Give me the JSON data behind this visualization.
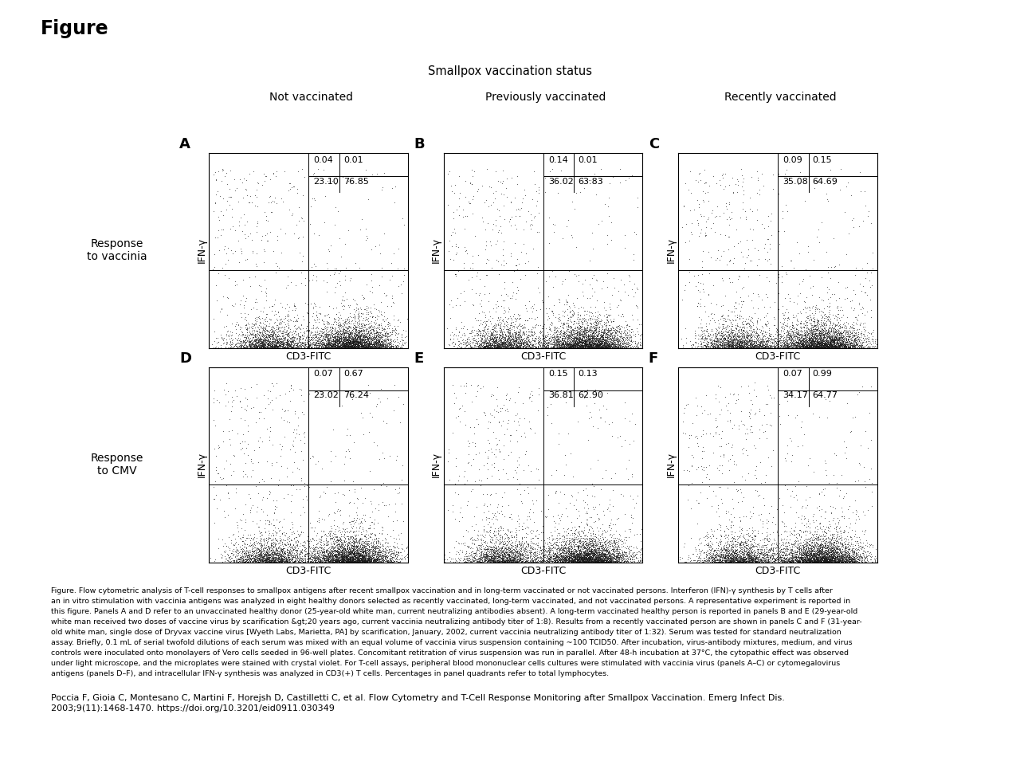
{
  "title": "Figure",
  "subtitle": "Smallpox vaccination status",
  "col_labels": [
    "Not vaccinated",
    "Previously vaccinated",
    "Recently vaccinated"
  ],
  "row_labels": [
    "Response\nto vaccinia",
    "Response\nto CMV"
  ],
  "panel_labels": [
    "A",
    "B",
    "C",
    "D",
    "E",
    "F"
  ],
  "quadrant_data": [
    [
      {
        "ul": "0.04",
        "ur": "0.01",
        "ll": "23.10",
        "lr": "76.85"
      },
      {
        "ul": "0.14",
        "ur": "0.01",
        "ll": "36.02",
        "lr": "63.83"
      },
      {
        "ul": "0.09",
        "ur": "0.15",
        "ll": "35.08",
        "lr": "64.69"
      }
    ],
    [
      {
        "ul": "0.07",
        "ur": "0.67",
        "ll": "23.02",
        "lr": "76.24"
      },
      {
        "ul": "0.15",
        "ur": "0.13",
        "ll": "36.81",
        "lr": "62.90"
      },
      {
        "ul": "0.07",
        "ur": "0.99",
        "ll": "34.17",
        "lr": "64.77"
      }
    ]
  ],
  "xlabel": "CD3-FITC",
  "ylabel": "IFN-γ",
  "caption_lines": [
    "Figure. Flow cytometric analysis of T-cell responses to smallpox antigens after recent smallpox vaccination and in long-term vaccinated or not vaccinated persons. Interferon (IFN)-γ synthesis by T cells after",
    "an in vitro stimulation with vaccinia antigens was analyzed in eight healthy donors selected as recently vaccinated, long-term vaccinated, and not vaccinated persons. A representative experiment is reported in",
    "this figure. Panels A and D refer to an unvaccinated healthy donor (25-year-old white man, current neutralizing antibodies absent). A long-term vaccinated healthy person is reported in panels B and E (29-year-old",
    "white man received two doses of vaccine virus by scarification &gt;20 years ago, current vaccinia neutralizing antibody titer of 1:8). Results from a recently vaccinated person are shown in panels C and F (31-year-",
    "old white man, single dose of Dryvax vaccine virus [Wyeth Labs, Marietta, PA] by scarification, January, 2002, current vaccinia neutralizing antibody titer of 1:32). Serum was tested for standard neutralization",
    "assay. Briefly, 0.1 mL of serial twofold dilutions of each serum was mixed with an equal volume of vaccinia virus suspension containing ~100 TCID50. After incubation, virus-antibody mixtures, medium, and virus",
    "controls were inoculated onto monolayers of Vero cells seeded in 96-well plates. Concomitant retitration of virus suspension was run in parallel. After 48-h incubation at 37°C, the cytopathic effect was observed",
    "under light microscope, and the microplates were stained with crystal violet. For T-cell assays, peripheral blood mononuclear cells cultures were stimulated with vaccinia virus (panels A–C) or cytomegalovirus",
    "antigens (panels D–F), and intracellular IFN-γ synthesis was analyzed in CD3(+) T cells. Percentages in panel quadrants refer to total lymphocytes."
  ],
  "citation_lines": [
    "Poccia F, Gioia C, Montesano C, Martini F, Horejsh D, Castilletti C, et al. Flow Cytometry and T-Cell Response Monitoring after Smallpox Vaccination. Emerg Infect Dis.",
    "2003;9(11):1468-1470. https://doi.org/10.3201/eid0911.030349"
  ],
  "bg_color": "#ffffff"
}
